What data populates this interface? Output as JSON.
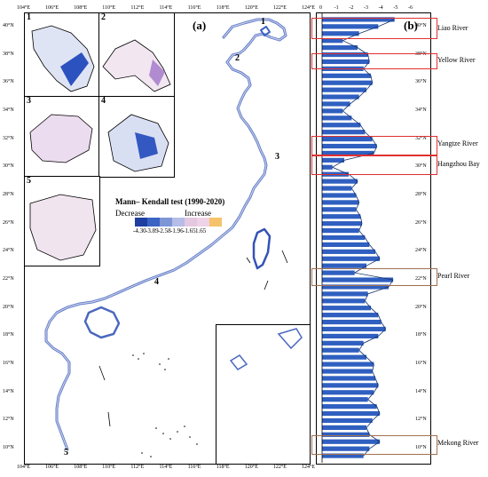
{
  "panel_a_label": "(a)",
  "panel_b_label": "(b)",
  "legend": {
    "title": "Mann– Kendall test (1990-2020)",
    "decrease": "Decrease",
    "increase": "Increase",
    "classes": [
      {
        "value": "-4.30",
        "color": "#1f3fa0"
      },
      {
        "value": "-3.89",
        "color": "#3b63c4"
      },
      {
        "value": "-2.58",
        "color": "#7e96d6"
      },
      {
        "value": "-1.96",
        "color": "#b6bde8"
      },
      {
        "value": "-1.65",
        "color": "#e4c7e0"
      },
      {
        "value": "1.65",
        "color": "#f0d2e8"
      },
      {
        "value": "",
        "color": "#f5c36a"
      }
    ]
  },
  "inset_numbers": [
    "1",
    "2",
    "3",
    "4",
    "5"
  ],
  "map_numbers": [
    "1",
    "2",
    "3",
    "4",
    "5"
  ],
  "lon_ticks": [
    "104°E",
    "106°E",
    "108°E",
    "110°E",
    "112°E",
    "114°E",
    "116°E",
    "118°E",
    "120°E",
    "122°E",
    "124°E"
  ],
  "lat_ticks": [
    "40°N",
    "38°N",
    "36°N",
    "34°N",
    "32°N",
    "30°N",
    "28°N",
    "26°N",
    "24°N",
    "22°N",
    "20°N",
    "18°N",
    "16°N",
    "14°N",
    "12°N",
    "10°N"
  ],
  "panel_b_top_ticks": [
    "0",
    "-1",
    "-2",
    "-3",
    "-4",
    "-5",
    "-6"
  ],
  "panel_b_lat_ticks": [
    "40°N",
    "38°N",
    "36°N",
    "34°N",
    "32°N",
    "30°N",
    "28°N",
    "26°N",
    "24°N",
    "22°N",
    "20°N",
    "18°N",
    "16°N",
    "14°N",
    "12°N",
    "10°N"
  ],
  "rivers": [
    "Liao River",
    "Yellow River",
    "Yangtze River",
    "Hangzhou Bay",
    "Pearl River",
    "Mekong River"
  ],
  "chart_data": {
    "type": "bar",
    "orientation": "horizontal",
    "x_range": [
      0,
      -6
    ],
    "y_range_latitude": [
      9,
      41
    ],
    "values_by_latitude": [
      [
        40.5,
        -4.9
      ],
      [
        40.0,
        -3.8
      ],
      [
        39.5,
        -2.5
      ],
      [
        39.0,
        -1.4
      ],
      [
        38.5,
        -2.4
      ],
      [
        38.0,
        -3.1
      ],
      [
        37.5,
        -3.2
      ],
      [
        37.0,
        -2.8
      ],
      [
        36.5,
        -3.3
      ],
      [
        36.0,
        -3.4
      ],
      [
        35.5,
        -3.0
      ],
      [
        35.0,
        -2.5
      ],
      [
        34.5,
        -1.9
      ],
      [
        34.0,
        -1.4
      ],
      [
        33.5,
        -2.0
      ],
      [
        33.0,
        -2.6
      ],
      [
        32.5,
        -2.9
      ],
      [
        32.0,
        -3.4
      ],
      [
        31.5,
        -3.7
      ],
      [
        31.0,
        -3.5
      ],
      [
        30.5,
        -1.5
      ],
      [
        30.0,
        -0.7
      ],
      [
        29.5,
        -1.8
      ],
      [
        29.0,
        -2.4
      ],
      [
        28.5,
        -2.0
      ],
      [
        28.0,
        -2.3
      ],
      [
        27.5,
        -2.5
      ],
      [
        27.0,
        -2.3
      ],
      [
        26.5,
        -2.6
      ],
      [
        26.0,
        -2.7
      ],
      [
        25.5,
        -2.5
      ],
      [
        25.0,
        -2.9
      ],
      [
        24.5,
        -3.2
      ],
      [
        24.0,
        -3.6
      ],
      [
        23.5,
        -3.9
      ],
      [
        23.0,
        -3.0
      ],
      [
        22.5,
        -2.2
      ],
      [
        22.0,
        -4.8
      ],
      [
        21.5,
        -4.5
      ],
      [
        21.0,
        -3.1
      ],
      [
        20.5,
        -2.9
      ],
      [
        20.0,
        -3.3
      ],
      [
        19.5,
        -3.8
      ],
      [
        19.0,
        -4.0
      ],
      [
        18.5,
        -4.3
      ],
      [
        18.0,
        -3.8
      ],
      [
        17.5,
        -2.8
      ],
      [
        17.0,
        -2.5
      ],
      [
        16.5,
        -3.0
      ],
      [
        16.0,
        -3.5
      ],
      [
        15.5,
        -3.4
      ],
      [
        15.0,
        -3.6
      ],
      [
        14.5,
        -3.8
      ],
      [
        14.0,
        -3.5
      ],
      [
        13.5,
        -3.1
      ],
      [
        13.0,
        -3.7
      ],
      [
        12.5,
        -3.9
      ],
      [
        12.0,
        -3.4
      ],
      [
        11.5,
        -3.0
      ],
      [
        11.0,
        -3.2
      ],
      [
        10.5,
        -3.9
      ],
      [
        10.0,
        -3.2
      ],
      [
        9.5,
        -2.8
      ]
    ]
  }
}
